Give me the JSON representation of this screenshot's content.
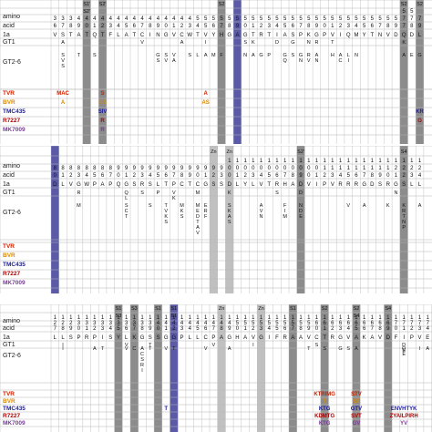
{
  "row_labels": {
    "amino": "amino",
    "acid": "acid",
    "gt1a": "1a",
    "gt1": "GT1",
    "gt26": "GT2-6"
  },
  "drugs": [
    {
      "name": "TVR",
      "color": "#cc2200"
    },
    {
      "name": "BVR",
      "color": "#dd8800"
    },
    {
      "name": "TMC435",
      "color": "#1a1aa0"
    },
    {
      "name": "R7227",
      "color": "#b00000"
    },
    {
      "name": "MK7009",
      "color": "#7a3a9a"
    }
  ],
  "colors": {
    "site_gray": "#8c8c8c",
    "light_gray": "#c0c0c0",
    "blue": "#5a5aa8",
    "grid": "#b5b5b5"
  },
  "panels": [
    {
      "id": "p1",
      "seq": "VSTATQTFLATCINGVCWTVYHGAGTRTIASPKGPVIQMYTNVDQDL",
      "pos_top": [
        "",
        "",
        "",
        "",
        "",
        "",
        "",
        "",
        "",
        "",
        "",
        "",
        "",
        "",
        "",
        "",
        "",
        "",
        "",
        "",
        "",
        "",
        "",
        "",
        "",
        "",
        "",
        "",
        "",
        "",
        "",
        "",
        "",
        "",
        "",
        "",
        "",
        "",
        "",
        "",
        "",
        "",
        "",
        "",
        "5",
        "5",
        ""
      ],
      "pos_mid": [
        "3",
        "3",
        "3",
        "4",
        "4",
        "4",
        "4",
        "4",
        "4",
        "4",
        "4",
        "4",
        "4",
        "4",
        "4",
        "4",
        "4",
        "4",
        "5",
        "5",
        "5",
        "5",
        "5",
        "5",
        "5",
        "5",
        "5",
        "5",
        "5",
        "5",
        "5",
        "5",
        "5",
        "5",
        "5",
        "5",
        "5",
        "5",
        "5",
        "5",
        "5",
        "5",
        "5",
        "5",
        "7",
        "7",
        "7"
      ],
      "pos_bot": [
        "6",
        "7",
        "8",
        "9",
        "0",
        "1",
        "2",
        "3",
        "4",
        "5",
        "6",
        "7",
        "8",
        "9",
        "0",
        "1",
        "2",
        "3",
        "4",
        "5",
        "6",
        "7",
        "8",
        "9",
        "0",
        "1",
        "2",
        "3",
        "4",
        "5",
        "6",
        "7",
        "8",
        "9",
        "0",
        "1",
        "2",
        "3",
        "4",
        "5",
        "6",
        "7",
        "8",
        "9",
        "7",
        "8",
        "9"
      ],
      "sites": [
        {
          "col": 4,
          "top": "S1'",
          "mid": "S2'"
        },
        {
          "col": 6,
          "top": "S2'",
          "mid": ""
        },
        {
          "col": 21,
          "top": "S2",
          "mid": ""
        },
        {
          "col": 44,
          "top": "S2",
          "mid": ""
        },
        {
          "col": 46,
          "top": "S2",
          "mid": ""
        }
      ],
      "gt1_subs": [
        {
          "col": 1,
          "text": "A"
        },
        {
          "col": 11,
          "text": "V"
        },
        {
          "col": 16,
          "text": "A"
        },
        {
          "col": 19,
          "text": "I"
        },
        {
          "col": 24,
          "text": "S"
        },
        {
          "col": 25,
          "text": "K"
        },
        {
          "col": 28,
          "text": "D"
        },
        {
          "col": 30,
          "text": "G"
        },
        {
          "col": 32,
          "text": "N"
        },
        {
          "col": 33,
          "text": "R"
        },
        {
          "col": 35,
          "text": "T"
        },
        {
          "col": 44,
          "text": "K"
        }
      ],
      "gt26_subs": [
        {
          "col": 1,
          "text": "SVS"
        },
        {
          "col": 3,
          "text": "T"
        },
        {
          "col": 5,
          "text": "S"
        },
        {
          "col": 13,
          "text": "GS"
        },
        {
          "col": 14,
          "text": "SV"
        },
        {
          "col": 15,
          "text": "VA"
        },
        {
          "col": 17,
          "text": "S"
        },
        {
          "col": 18,
          "text": "L"
        },
        {
          "col": 19,
          "text": "A"
        },
        {
          "col": 20,
          "text": "M"
        },
        {
          "col": 21,
          "text": "F"
        },
        {
          "col": 24,
          "text": "N"
        },
        {
          "col": 25,
          "text": "A"
        },
        {
          "col": 26,
          "text": "G"
        },
        {
          "col": 27,
          "text": "P"
        },
        {
          "col": 29,
          "text": "GQ"
        },
        {
          "col": 30,
          "text": "S"
        },
        {
          "col": 31,
          "text": "GN"
        },
        {
          "col": 32,
          "text": "RV"
        },
        {
          "col": 33,
          "text": "AN"
        },
        {
          "col": 35,
          "text": "H"
        },
        {
          "col": 36,
          "text": "AC"
        },
        {
          "col": 37,
          "text": "LI"
        },
        {
          "col": 38,
          "text": "N"
        },
        {
          "col": 44,
          "text": "A"
        },
        {
          "col": 45,
          "text": "E"
        },
        {
          "col": 46,
          "text": "G"
        }
      ],
      "resistance": [
        {
          "drug": 0,
          "col": 1,
          "text": "MAC"
        },
        {
          "drug": 0,
          "col": 6,
          "text": "S"
        },
        {
          "drug": 0,
          "col": 19,
          "text": "A"
        },
        {
          "drug": 1,
          "col": 1,
          "text": "A"
        },
        {
          "drug": 1,
          "col": 6,
          "text": "CS"
        },
        {
          "drug": 1,
          "col": 19,
          "text": "AS"
        },
        {
          "drug": 2,
          "col": 6,
          "text": "SIV"
        },
        {
          "drug": 2,
          "col": 46,
          "text": "KR"
        },
        {
          "drug": 3,
          "col": 6,
          "text": "R"
        },
        {
          "drug": 3,
          "col": 46,
          "text": "G"
        },
        {
          "drug": 4,
          "col": 6,
          "text": "R"
        }
      ]
    },
    {
      "id": "p2",
      "seq": "DLVGWPAPQGSRSLTPCTCGSSDLYLVTRHADVIPVRRRGDSRGSLL",
      "pos_top": [
        "",
        "",
        "",
        "",
        "",
        "",
        "",
        "",
        "",
        "",
        "",
        "",
        "",
        "",
        "",
        "",
        "",
        "",
        "",
        "",
        "",
        "",
        "1",
        "1",
        "1",
        "1",
        "1",
        "1",
        "1",
        "1",
        "1",
        "1",
        "1",
        "1",
        "1",
        "1",
        "1",
        "1",
        "1",
        "1",
        "1",
        "1",
        "1",
        "1",
        "1",
        "1",
        "1"
      ],
      "pos_mid": [
        "8",
        "8",
        "8",
        "8",
        "8",
        "8",
        "8",
        "8",
        "9",
        "9",
        "9",
        "9",
        "9",
        "9",
        "9",
        "9",
        "9",
        "9",
        "9",
        "9",
        "9",
        "9",
        "0",
        "0",
        "0",
        "0",
        "0",
        "0",
        "0",
        "0",
        "0",
        "0",
        "0",
        "0",
        "1",
        "1",
        "1",
        "1",
        "1",
        "1",
        "1",
        "1",
        "1",
        "2",
        "2",
        "2",
        "2"
      ],
      "pos_bot": [
        "0",
        "1",
        "2",
        "3",
        "4",
        "5",
        "6",
        "7",
        "0",
        "1",
        "2",
        "3",
        "4",
        "5",
        "6",
        "7",
        "8",
        "9",
        "0",
        "1",
        "2",
        "3",
        "0",
        "1",
        "2",
        "3",
        "4",
        "5",
        "6",
        "7",
        "8",
        "9",
        "0",
        "1",
        "2",
        "3",
        "4",
        "5",
        "6",
        "7",
        "8",
        "9",
        "0",
        "1",
        "2",
        "3",
        "4"
      ],
      "sites": [
        {
          "col": 20,
          "top": "Zn",
          "mid": ""
        },
        {
          "col": 22,
          "top": "Zn",
          "mid": ""
        },
        {
          "col": 31,
          "top": "S2'",
          "mid": ""
        },
        {
          "col": 44,
          "top": "S4",
          "mid": ""
        }
      ],
      "gt1_subs": [
        {
          "col": 3,
          "text": "R"
        },
        {
          "col": 9,
          "text": "QL"
        },
        {
          "col": 11,
          "text": "S"
        },
        {
          "col": 13,
          "text": "P"
        },
        {
          "col": 15,
          "text": "VK"
        },
        {
          "col": 18,
          "text": "M"
        },
        {
          "col": 22,
          "text": "K"
        },
        {
          "col": 28,
          "text": "S"
        },
        {
          "col": 31,
          "text": "D"
        },
        {
          "col": 43,
          "text": "N"
        }
      ],
      "gt26_subs": [
        {
          "col": 3,
          "text": "M"
        },
        {
          "col": 9,
          "text": "SCT"
        },
        {
          "col": 12,
          "text": "S"
        },
        {
          "col": 14,
          "text": "TVKS"
        },
        {
          "col": 16,
          "text": "MKS"
        },
        {
          "col": 18,
          "text": "MEDTAV"
        },
        {
          "col": 19,
          "text": "ERF"
        },
        {
          "col": 22,
          "text": "SKAS"
        },
        {
          "col": 26,
          "text": "AVN"
        },
        {
          "col": 29,
          "text": "FIM"
        },
        {
          "col": 31,
          "text": "NDE"
        },
        {
          "col": 37,
          "text": "V"
        },
        {
          "col": 39,
          "text": "A"
        },
        {
          "col": 42,
          "text": "K"
        },
        {
          "col": 44,
          "text": "KRTNP"
        },
        {
          "col": 46,
          "text": "A"
        }
      ],
      "resistance": []
    },
    {
      "id": "p3",
      "seq": "LLSPRPISYLKGSSGGPLLCPAGHAVGIFRAAVCTRGVAKAVDFIPVE",
      "pos_top": [
        "1",
        "1",
        "1",
        "1",
        "1",
        "1",
        "1",
        "1",
        "1",
        "1",
        "1",
        "1",
        "1",
        "1",
        "1",
        "1",
        "1",
        "1",
        "1",
        "1",
        "1",
        "1",
        "1",
        "1",
        "1",
        "1",
        "1",
        "1",
        "1",
        "1",
        "1",
        "1",
        "1",
        "1",
        "1",
        "1",
        "1",
        "1",
        "1",
        "1",
        "1",
        "1",
        "1",
        "1",
        "1",
        "1",
        "1",
        "1"
      ],
      "pos_mid": [
        "2",
        "2",
        "2",
        "3",
        "3",
        "3",
        "3",
        "3",
        "3",
        "3",
        "3",
        "3",
        "3",
        "4",
        "4",
        "4",
        "4",
        "4",
        "4",
        "4",
        "4",
        "4",
        "4",
        "5",
        "5",
        "5",
        "5",
        "5",
        "5",
        "5",
        "5",
        "5",
        "5",
        "6",
        "6",
        "6",
        "6",
        "6",
        "6",
        "6",
        "6",
        "6",
        "6",
        "7",
        "7",
        "7",
        "7",
        "7"
      ],
      "pos_bot": [
        "7",
        "8",
        "9",
        "0",
        "1",
        "2",
        "3",
        "4",
        "5",
        "6",
        "7",
        "8",
        "9",
        "0",
        "1",
        "2",
        "3",
        "4",
        "5",
        "6",
        "7",
        "8",
        "9",
        "0",
        "1",
        "2",
        "3",
        "4",
        "5",
        "6",
        "7",
        "8",
        "9",
        "0",
        "1",
        "2",
        "3",
        "4",
        "5",
        "6",
        "7",
        "8",
        "9",
        "0",
        "1",
        "2",
        "3",
        "4"
      ],
      "sites": [
        {
          "col": 8,
          "top": "S1",
          "mid": "S3"
        },
        {
          "col": 10,
          "top": "S3",
          "mid": ""
        },
        {
          "col": 13,
          "top": "S1",
          "mid": ""
        },
        {
          "col": 15,
          "top": "S1",
          "mid": "S1"
        },
        {
          "col": 21,
          "top": "Zn",
          "mid": ""
        },
        {
          "col": 26,
          "top": "Zn",
          "mid": ""
        },
        {
          "col": 30,
          "top": "S1",
          "mid": ""
        },
        {
          "col": 34,
          "top": "S2",
          "mid": ""
        },
        {
          "col": 38,
          "top": "S2",
          "mid": "S4"
        },
        {
          "col": 42,
          "top": "S4",
          "mid": ""
        }
      ],
      "gt1_subs": [
        {
          "col": 1,
          "text": "I"
        },
        {
          "col": 9,
          "text": "V"
        },
        {
          "col": 12,
          "text": "T"
        },
        {
          "col": 20,
          "text": "V"
        },
        {
          "col": 25,
          "text": "I"
        },
        {
          "col": 33,
          "text": "S"
        },
        {
          "col": 44,
          "text": "DE"
        }
      ],
      "gt26_subs": [
        {
          "col": 1,
          "text": "I"
        },
        {
          "col": 5,
          "text": "A"
        },
        {
          "col": 6,
          "text": "T"
        },
        {
          "col": 9,
          "text": "V"
        },
        {
          "col": 10,
          "text": "C"
        },
        {
          "col": 11,
          "text": "ACSRI"
        },
        {
          "col": 12,
          "text": "T"
        },
        {
          "col": 14,
          "text": "V"
        },
        {
          "col": 15,
          "text": "T"
        },
        {
          "col": 19,
          "text": "V"
        },
        {
          "col": 22,
          "text": "A"
        },
        {
          "col": 32,
          "text": "T"
        },
        {
          "col": 34,
          "text": "S"
        },
        {
          "col": 36,
          "text": "G"
        },
        {
          "col": 37,
          "text": "S"
        },
        {
          "col": 38,
          "text": "A"
        },
        {
          "col": 44,
          "text": "QE"
        },
        {
          "col": 46,
          "text": "I"
        },
        {
          "col": 47,
          "text": "A"
        }
      ],
      "resistance": [
        {
          "drug": 0,
          "col": 34,
          "text": "KTRIMG"
        },
        {
          "drug": 0,
          "col": 38,
          "text": "STV"
        },
        {
          "drug": 1,
          "col": 34,
          "text": "T"
        },
        {
          "drug": 1,
          "col": 38,
          "text": "ST"
        },
        {
          "drug": 2,
          "col": 14,
          "text": "T"
        },
        {
          "drug": 2,
          "col": 34,
          "text": "KTG"
        },
        {
          "drug": 2,
          "col": 38,
          "text": "GTV"
        },
        {
          "drug": 2,
          "col": 44,
          "text": "ENVHTYK"
        },
        {
          "drug": 3,
          "col": 34,
          "text": "KDMTG"
        },
        {
          "drug": 3,
          "col": 38,
          "text": "SVT"
        },
        {
          "drug": 3,
          "col": 44,
          "text": "ZYAILPIRH"
        },
        {
          "drug": 4,
          "col": 34,
          "text": "KTG"
        },
        {
          "drug": 4,
          "col": 38,
          "text": "GV"
        },
        {
          "drug": 4,
          "col": 44,
          "text": "YV"
        }
      ]
    }
  ]
}
